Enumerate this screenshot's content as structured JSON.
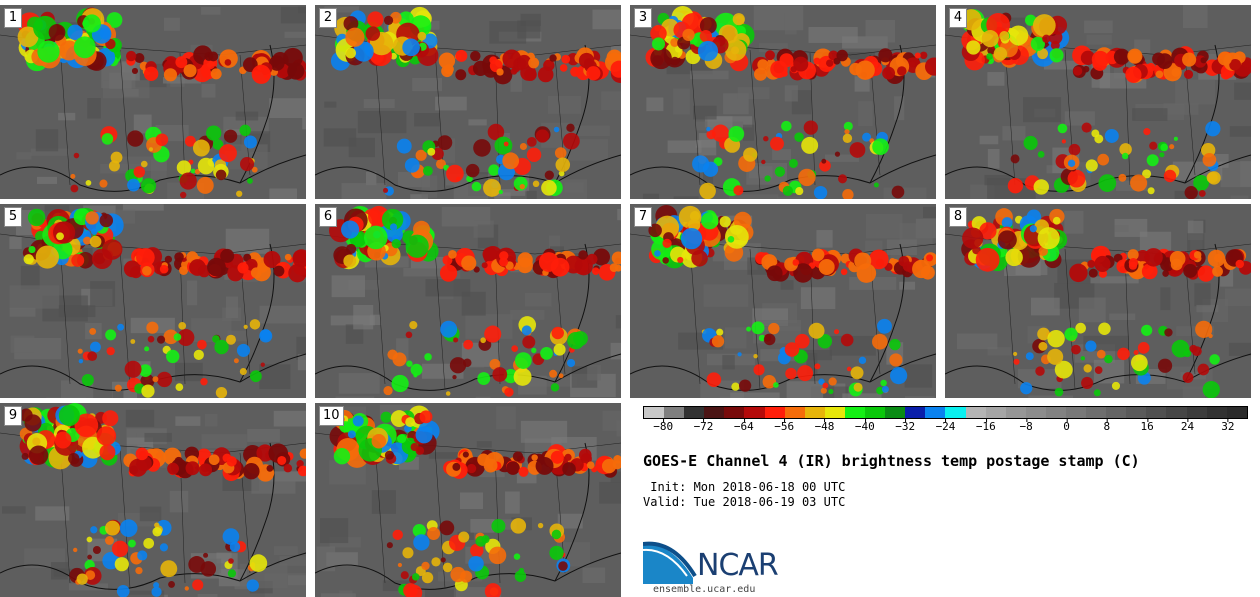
{
  "panels": [
    {
      "label": "1"
    },
    {
      "label": "2"
    },
    {
      "label": "3"
    },
    {
      "label": "4"
    },
    {
      "label": "5"
    },
    {
      "label": "6"
    },
    {
      "label": "7"
    },
    {
      "label": "8"
    },
    {
      "label": "9"
    },
    {
      "label": "10"
    }
  ],
  "colorbar": {
    "colors": [
      "#c8c8c8",
      "#7f7f7f",
      "#323232",
      "#4b1414",
      "#780a0a",
      "#b40a0a",
      "#ff1e0a",
      "#f56c0a",
      "#e6b40a",
      "#e6e60a",
      "#14f014",
      "#0ac80a",
      "#0a8c14",
      "#0a1eaa",
      "#0a82f0",
      "#0af0f0",
      "#b4b4b4",
      "#a5a5a5",
      "#969696",
      "#8c8c8c",
      "#828282",
      "#787878",
      "#6e6e6e",
      "#646464",
      "#5a5a5a",
      "#505050",
      "#464646",
      "#3c3c3c",
      "#323232",
      "#2b2b2b"
    ],
    "ticks": [
      "−80",
      "−72",
      "−64",
      "−56",
      "−48",
      "−40",
      "−32",
      "−24",
      "−16",
      "−8",
      "0",
      "8",
      "16",
      "24",
      "32"
    ]
  },
  "title": "GOES-E Channel 4 (IR) brightness temp postage stamp (C)",
  "init": " Init: Mon 2018-06-18 00 UTC",
  "valid": "Valid: Tue 2018-06-19 03 UTC",
  "logo": {
    "text": "NCAR"
  },
  "site": "ensemble.ucar.edu"
}
